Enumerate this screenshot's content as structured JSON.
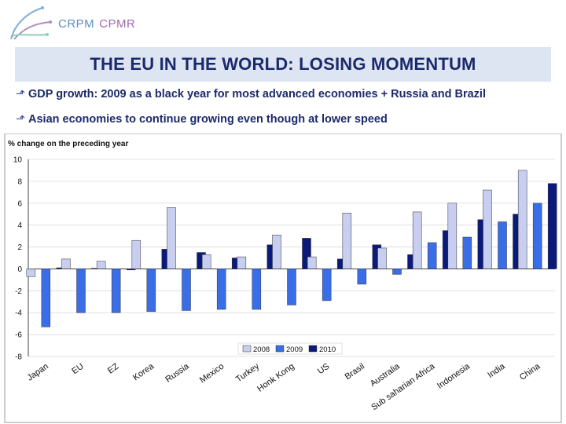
{
  "header": {
    "logo_text_a": "CRPM",
    "logo_text_b": "CPMR",
    "title": "THE EU IN THE WORLD: LOSING MOMENTUM"
  },
  "bullets": [
    "GDP growth: 2009 as a black year for most advanced economies + Russia and Brazil",
    "Asian economies to continue growing even though at lower speed"
  ],
  "bullet_icon": "arrow-bullet-icon",
  "colors": {
    "title_bg": "#dde5f3",
    "title_text": "#1c2a6b",
    "s2008": "#c8cef0",
    "s2009": "#3a6ee8",
    "s2010": "#0a1a7a"
  },
  "chart_data": {
    "type": "bar",
    "ylabel": "% change on the preceding year",
    "ylim": [
      -8,
      10
    ],
    "yticks": [
      10,
      8,
      6,
      4,
      2,
      0,
      -2,
      -4,
      -6,
      -8
    ],
    "legend_position": "bottom-right",
    "categories": [
      "Japan",
      "EU",
      "EZ",
      "Korea",
      "Russia",
      "Mexico",
      "Turkey",
      "Honk Kong",
      "US",
      "Brasil",
      "Australia",
      "Sub saharian Africa",
      "Indonesia",
      "India",
      "China"
    ],
    "series": [
      {
        "name": "2008",
        "values": [
          -0.7,
          0.9,
          0.7,
          2.6,
          5.6,
          1.3,
          1.1,
          3.1,
          1.1,
          5.1,
          1.9,
          5.2,
          6.0,
          7.2,
          9.0
        ]
      },
      {
        "name": "2009",
        "values": [
          -5.3,
          -4.0,
          -4.0,
          -3.9,
          -3.8,
          -3.7,
          -3.7,
          -3.3,
          -2.9,
          -1.4,
          -0.5,
          2.4,
          2.9,
          4.3,
          6.0
        ]
      },
      {
        "name": "2010",
        "values": [
          0.1,
          0.0,
          -0.1,
          1.8,
          1.5,
          1.0,
          2.2,
          2.8,
          0.9,
          2.2,
          1.3,
          3.5,
          4.5,
          5.0,
          7.8
        ]
      }
    ]
  }
}
